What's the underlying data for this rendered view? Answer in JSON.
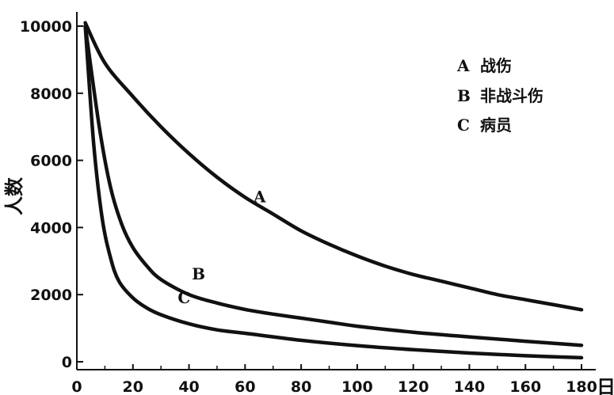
{
  "chart_data": {
    "type": "line",
    "title": "",
    "xlabel": "日",
    "ylabel": "人数",
    "xlim": [
      0,
      180
    ],
    "ylim": [
      0,
      10000
    ],
    "x_ticks": [
      "0",
      "20",
      "40",
      "60",
      "80",
      "100",
      "120",
      "140",
      "160",
      "180"
    ],
    "y_ticks": [
      "0",
      "2000",
      "4000",
      "6000",
      "8000",
      "10000"
    ],
    "grid": false,
    "legend_position": "top-right",
    "legend": [
      {
        "key": "A",
        "label": "战伤"
      },
      {
        "key": "B",
        "label": "非战斗伤"
      },
      {
        "key": "C",
        "label": "病员"
      }
    ],
    "series": [
      {
        "name": "A",
        "x": [
          3,
          10,
          20,
          30,
          40,
          50,
          60,
          70,
          80,
          90,
          100,
          110,
          120,
          130,
          140,
          150,
          160,
          170,
          180
        ],
        "y": [
          10100,
          8900,
          7900,
          7000,
          6200,
          5500,
          4900,
          4400,
          3900,
          3500,
          3150,
          2850,
          2600,
          2400,
          2200,
          2000,
          1850,
          1700,
          1550
        ]
      },
      {
        "name": "B",
        "x": [
          3,
          8,
          12,
          16,
          20,
          25,
          30,
          40,
          50,
          60,
          70,
          80,
          90,
          100,
          120,
          140,
          160,
          180
        ],
        "y": [
          10000,
          7000,
          5200,
          4100,
          3400,
          2850,
          2450,
          2000,
          1750,
          1560,
          1420,
          1300,
          1180,
          1060,
          880,
          740,
          610,
          490
        ]
      },
      {
        "name": "C",
        "x": [
          3,
          6,
          9,
          12,
          15,
          20,
          25,
          30,
          40,
          50,
          60,
          80,
          100,
          120,
          140,
          160,
          180
        ],
        "y": [
          10000,
          6500,
          4300,
          3100,
          2400,
          1900,
          1600,
          1400,
          1130,
          950,
          850,
          640,
          480,
          360,
          260,
          180,
          120
        ]
      }
    ],
    "annotations": [
      {
        "text": "A",
        "x": 63,
        "y": 4750
      },
      {
        "text": "B",
        "x": 41,
        "y": 2450
      },
      {
        "text": "C",
        "x": 36,
        "y": 1750
      }
    ]
  }
}
